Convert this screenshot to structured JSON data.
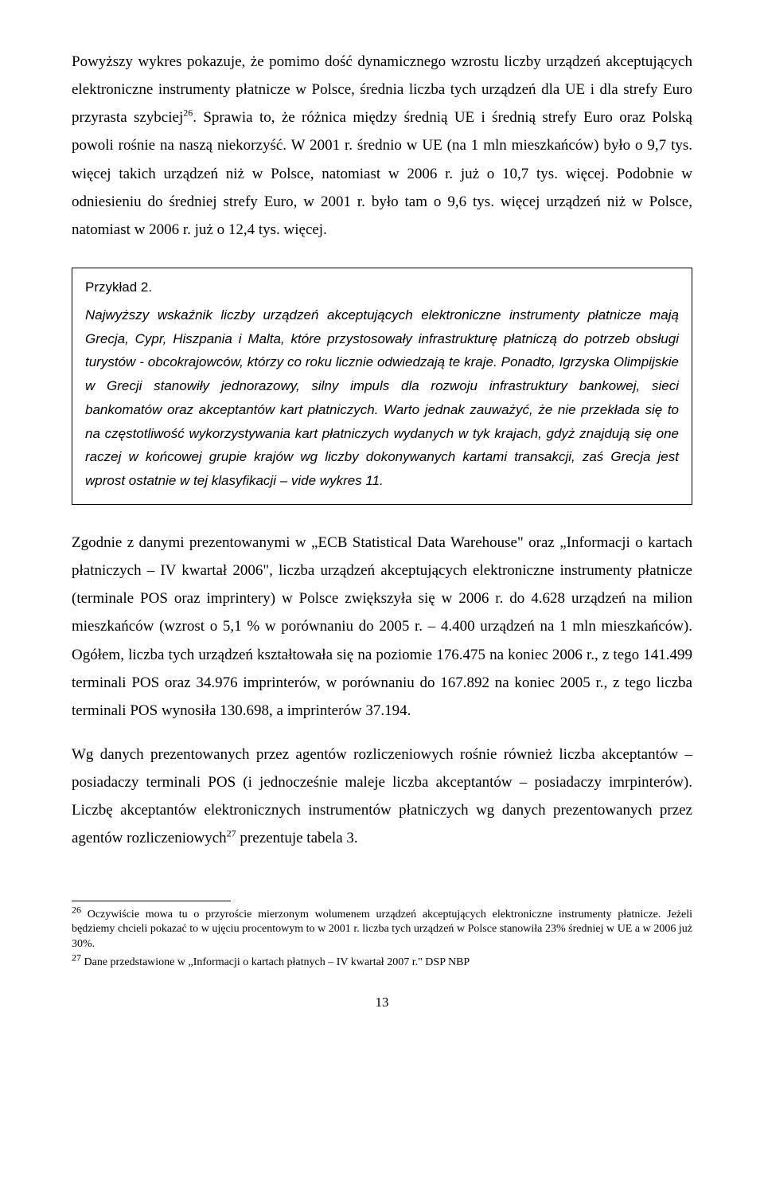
{
  "paragraphs": {
    "p1_part1": "Powyższy wykres pokazuje, że pomimo dość dynamicznego wzrostu liczby urządzeń akceptujących elektroniczne instrumenty płatnicze w Polsce, średnia liczba tych urządzeń dla UE i dla strefy Euro przyrasta szybciej",
    "p1_sup1": "26",
    "p1_part2": ". Sprawia to, że różnica między średnią UE i średnią strefy Euro oraz Polską powoli rośnie na naszą niekorzyść. W 2001 r. średnio w UE (na 1 mln mieszkańców) było o 9,7 tys. więcej takich urządzeń niż w Polsce, natomiast w 2006 r. już o 10,7 tys. więcej. Podobnie w odniesieniu do średniej strefy Euro, w 2001 r. było tam o 9,6 tys. więcej urządzeń niż w Polsce, natomiast w 2006 r. już o 12,4 tys. więcej.",
    "p2": "Zgodnie z danymi prezentowanymi w „ECB Statistical Data Warehouse\" oraz „Informacji o kartach płatniczych – IV kwartał 2006\", liczba urządzeń akceptujących elektroniczne instrumenty płatnicze (terminale POS oraz imprintery) w Polsce zwiększyła się w 2006 r. do 4.628 urządzeń na milion mieszkańców (wzrost o 5,1 % w porównaniu do 2005 r. – 4.400 urządzeń na 1 mln mieszkańców). Ogółem, liczba tych urządzeń kształtowała się na poziomie 176.475 na koniec 2006 r., z tego 141.499 terminali POS oraz 34.976 imprinterów, w porównaniu do 167.892 na koniec 2005 r., z tego liczba terminali POS wynosiła 130.698, a imprinterów 37.194.",
    "p3_part1": "Wg danych prezentowanych przez agentów rozliczeniowych rośnie również liczba akceptantów – posiadaczy terminali POS (i jednocześnie maleje liczba akceptantów – posiadaczy imrpinterów). Liczbę akceptantów elektronicznych instrumentów płatniczych wg danych prezentowanych przez agentów rozliczeniowych",
    "p3_sup1": "27",
    "p3_part2": " prezentuje tabela 3."
  },
  "example": {
    "title": "Przykład 2.",
    "body": "Najwyższy wskaźnik liczby urządzeń akceptujących elektroniczne instrumenty płatnicze mają Grecja, Cypr, Hiszpania i Malta, które przystosowały infrastrukturę płatniczą do potrzeb obsługi turystów - obcokrajowców, którzy co roku licznie odwiedzają te kraje. Ponadto, Igrzyska Olimpijskie w Grecji stanowiły jednorazowy, silny impuls dla rozwoju infrastruktury bankowej, sieci bankomatów oraz akceptantów kart płatniczych. Warto jednak zauważyć, że nie przekłada się to na częstotliwość wykorzystywania kart płatniczych wydanych w tyk krajach, gdyż znajdują się one raczej w końcowej grupie krajów wg liczby dokonywanych kartami transakcji, zaś Grecja jest wprost ostatnie w tej klasyfikacji – vide wykres 11."
  },
  "footnotes": {
    "fn26_sup": "26",
    "fn26_text": " Oczywiście mowa tu o przyroście mierzonym wolumenem urządzeń akceptujących elektroniczne instrumenty płatnicze. Jeżeli będziemy chcieli pokazać to w ujęciu procentowym to w 2001 r. liczba tych urządzeń w Polsce stanowiła 23% średniej w UE a w 2006 już 30%.",
    "fn27_sup": "27",
    "fn27_text": " Dane przedstawione w „Informacji o kartach płatnych – IV kwartał 2007 r.\" DSP NBP"
  },
  "page_number": "13"
}
